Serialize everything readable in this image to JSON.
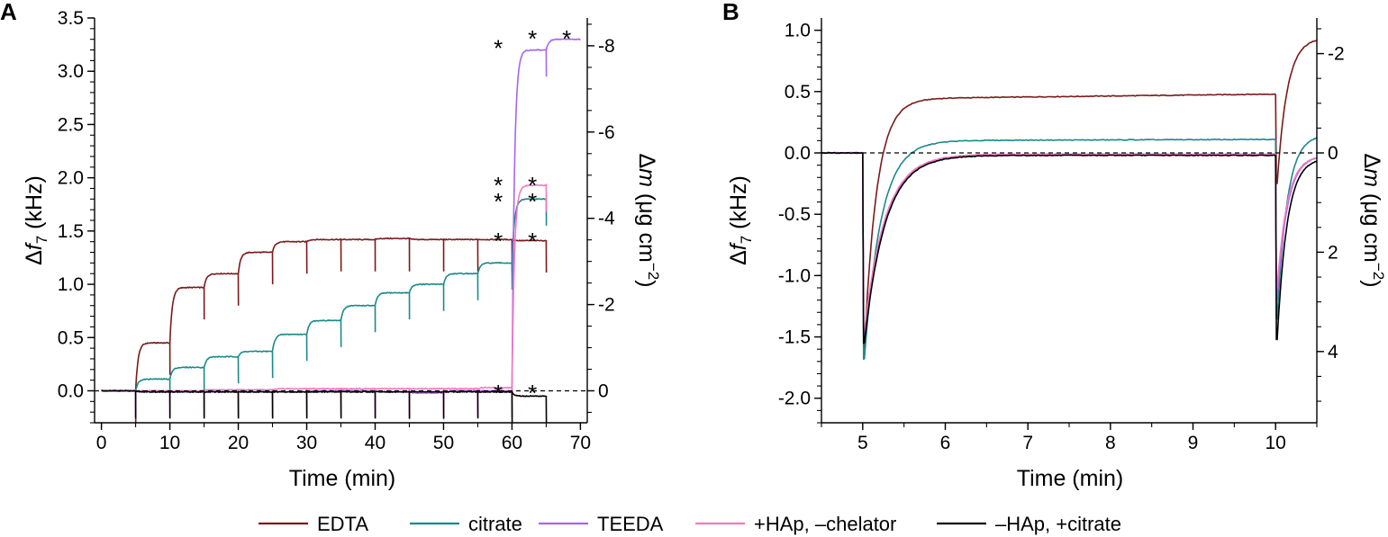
{
  "chart_data": [
    {
      "panel": "A",
      "type": "line",
      "xlabel": "Time (min)",
      "ylabel": "Δf7 (kHz)",
      "ylabel_parts": {
        "prefix": "Δ",
        "var": "f",
        "sub": "7",
        "unit": " (kHz)"
      },
      "y2label_parts": {
        "prefix": "Δ",
        "var": "m",
        "unit": " (μg cm",
        "sup": "−2",
        "close": ")"
      },
      "xlim": [
        -1,
        71
      ],
      "ylim": [
        -0.3,
        3.5
      ],
      "xticks": [
        0,
        10,
        20,
        30,
        40,
        50,
        60,
        70
      ],
      "xtick_labels": [
        "0",
        "10",
        "20",
        "30",
        "40",
        "50",
        "60",
        "70"
      ],
      "yticks": [
        0.0,
        0.5,
        1.0,
        1.5,
        2.0,
        2.5,
        3.0,
        3.5
      ],
      "ytick_labels": [
        "0.0",
        "0.5",
        "1.0",
        "1.5",
        "2.0",
        "2.5",
        "3.0",
        "3.5"
      ],
      "y2_ticks": [
        0,
        -2,
        -4,
        -6,
        -8
      ],
      "y2_tick_labels": [
        "0",
        "-2",
        "-4",
        "-6",
        "-8"
      ],
      "y2_per_kHz": -2.47,
      "reference_line": {
        "y": 0,
        "style": "dashed"
      },
      "series": [
        {
          "key": "edta",
          "color": "#7a1a1a",
          "plateaus": [
            [
              0,
              0
            ],
            [
              5,
              0.45
            ],
            [
              10,
              0.97
            ],
            [
              15,
              1.1
            ],
            [
              20,
              1.3
            ],
            [
              25,
              1.4
            ],
            [
              30,
              1.42
            ],
            [
              35,
              1.42
            ],
            [
              40,
              1.43
            ],
            [
              45,
              1.42
            ],
            [
              50,
              1.42
            ],
            [
              55,
              1.42
            ],
            [
              60,
              1.41
            ],
            [
              65,
              1.41
            ]
          ],
          "end": 65
        },
        {
          "key": "citrate",
          "color": "#1a8a8a",
          "plateaus": [
            [
              0,
              0
            ],
            [
              5,
              0.11
            ],
            [
              10,
              0.22
            ],
            [
              15,
              0.32
            ],
            [
              20,
              0.37
            ],
            [
              25,
              0.53
            ],
            [
              30,
              0.66
            ],
            [
              35,
              0.8
            ],
            [
              40,
              0.92
            ],
            [
              45,
              1.0
            ],
            [
              50,
              1.1
            ],
            [
              55,
              1.2
            ],
            [
              60,
              1.8
            ],
            [
              65,
              1.8
            ]
          ],
          "end": 65
        },
        {
          "key": "teeda",
          "color": "#a566f0",
          "plateaus": [
            [
              0,
              0
            ],
            [
              5,
              -0.01
            ],
            [
              10,
              -0.01
            ],
            [
              15,
              -0.01
            ],
            [
              20,
              -0.01
            ],
            [
              25,
              -0.01
            ],
            [
              30,
              0.0
            ],
            [
              35,
              0.0
            ],
            [
              40,
              -0.01
            ],
            [
              45,
              -0.02
            ],
            [
              50,
              0.0
            ],
            [
              55,
              0.0
            ],
            [
              60,
              3.2
            ],
            [
              65,
              3.3
            ]
          ],
          "end": 70
        },
        {
          "key": "hap_nochelator",
          "color": "#f07ac0",
          "plateaus": [
            [
              0,
              0
            ],
            [
              5,
              0.0
            ],
            [
              10,
              0.0
            ],
            [
              15,
              0.01
            ],
            [
              20,
              0.01
            ],
            [
              25,
              0.02
            ],
            [
              30,
              0.02
            ],
            [
              35,
              0.02
            ],
            [
              40,
              0.02
            ],
            [
              45,
              0.02
            ],
            [
              50,
              0.02
            ],
            [
              55,
              0.03
            ],
            [
              60,
              1.93
            ],
            [
              65,
              1.93
            ]
          ],
          "end": 65
        },
        {
          "key": "nohap_citrate",
          "color": "#000000",
          "plateaus": [
            [
              0,
              0
            ],
            [
              5,
              -0.01
            ],
            [
              10,
              -0.01
            ],
            [
              15,
              -0.01
            ],
            [
              20,
              -0.01
            ],
            [
              25,
              -0.01
            ],
            [
              30,
              -0.01
            ],
            [
              35,
              -0.01
            ],
            [
              40,
              -0.01
            ],
            [
              45,
              -0.01
            ],
            [
              50,
              -0.01
            ],
            [
              55,
              -0.01
            ],
            [
              60,
              -0.05
            ],
            [
              65,
              -0.04
            ]
          ],
          "end": 65
        }
      ],
      "stars": [
        [
          58,
          3.26
        ],
        [
          63,
          3.35
        ],
        [
          68,
          3.35
        ],
        [
          58,
          1.97
        ],
        [
          63,
          1.97
        ],
        [
          58,
          1.82
        ],
        [
          63,
          1.82
        ],
        [
          58,
          1.45
        ],
        [
          63,
          1.45
        ],
        [
          58,
          0.02
        ],
        [
          63,
          0.02
        ]
      ],
      "star_glyph": "*"
    },
    {
      "panel": "B",
      "type": "line",
      "xlabel": "Time (min)",
      "ylabel": "Δf7 (kHz)",
      "ylabel_parts": {
        "prefix": "Δ",
        "var": "f",
        "sub": "7",
        "unit": " (kHz)"
      },
      "y2label_parts": {
        "prefix": "Δ",
        "var": "m",
        "unit": " (μg cm",
        "sup": "−2",
        "close": ")"
      },
      "xlim": [
        4.5,
        10.5
      ],
      "ylim": [
        -2.2,
        1.1
      ],
      "xticks": [
        5,
        6,
        7,
        8,
        9,
        10
      ],
      "xtick_labels": [
        "5",
        "6",
        "7",
        "8",
        "9",
        "10"
      ],
      "yticks": [
        1.0,
        0.5,
        0.0,
        -0.5,
        -1.0,
        -1.5,
        -2.0
      ],
      "ytick_labels": [
        "1.0",
        "0.5",
        "0.0",
        "-0.5",
        "-1.0",
        "-1.5",
        "-2.0"
      ],
      "y2_ticks": [
        -2,
        0,
        2,
        4
      ],
      "y2_tick_labels": [
        "-2",
        "0",
        "2",
        "4"
      ],
      "y2_per_kHz": -2.47,
      "reference_line": {
        "y": 0,
        "style": "dashed"
      },
      "series": [
        {
          "key": "edta",
          "color": "#7a1a1a",
          "start_level": 0,
          "dip1": -1.6,
          "level1": 0.44,
          "level1_end": 0.48,
          "dip2": -0.25,
          "end_level": 0.94,
          "tau": 0.15
        },
        {
          "key": "citrate",
          "color": "#1a8a8a",
          "start_level": 0,
          "dip1": -1.68,
          "level1": 0.1,
          "level1_end": 0.11,
          "dip2": -1.35,
          "end_level": 0.15,
          "tau": 0.2
        },
        {
          "key": "teeda",
          "color": "#a566f0",
          "start_level": 0,
          "dip1": -1.5,
          "level1": -0.02,
          "level1_end": -0.01,
          "dip2": -1.2,
          "end_level": -0.02,
          "tau": 0.25
        },
        {
          "key": "hap_nochelator",
          "color": "#f07ac0",
          "start_level": 0,
          "dip1": -1.45,
          "level1": -0.01,
          "level1_end": -0.01,
          "dip2": -1.1,
          "end_level": -0.02,
          "tau": 0.25
        },
        {
          "key": "nohap_citrate",
          "color": "#000000",
          "start_level": 0,
          "dip1": -1.55,
          "level1": -0.02,
          "level1_end": -0.02,
          "dip2": -1.52,
          "end_level": -0.04,
          "tau": 0.25
        }
      ]
    }
  ],
  "legend": {
    "placement": "bottom-center",
    "items": [
      {
        "key": "edta",
        "label": "EDTA",
        "color": "#7a1a1a"
      },
      {
        "key": "citrate",
        "label": "citrate",
        "color": "#1a8a8a"
      },
      {
        "key": "teeda",
        "label": "TEEDA",
        "color": "#a566f0"
      },
      {
        "key": "hap_nochelator",
        "label": "+HAp, –chelator",
        "color": "#f07ac0"
      },
      {
        "key": "nohap_citrate",
        "label": "–HAp, +citrate",
        "color": "#000000"
      }
    ]
  }
}
